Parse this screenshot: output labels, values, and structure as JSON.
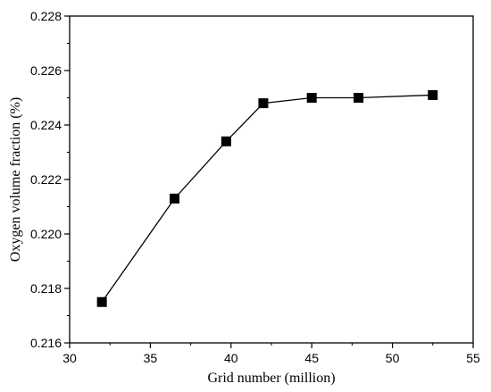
{
  "chart_data": {
    "type": "line",
    "xlabel": "Grid number (million)",
    "ylabel": "Oxygen volume fraction (%)",
    "xlim": [
      30,
      55
    ],
    "ylim": [
      0.216,
      0.228
    ],
    "x_ticks": [
      30,
      35,
      40,
      45,
      50,
      55
    ],
    "y_ticks": [
      0.216,
      0.218,
      0.22,
      0.222,
      0.224,
      0.226,
      0.228
    ],
    "x_tick_labels": [
      "30",
      "35",
      "40",
      "45",
      "50",
      "55"
    ],
    "y_tick_labels": [
      "0.216",
      "0.218",
      "0.220",
      "0.222",
      "0.224",
      "0.226",
      "0.228"
    ],
    "series": [
      {
        "marker": "square",
        "color": "#000000",
        "x": [
          32.0,
          36.5,
          39.7,
          42.0,
          45.0,
          47.9,
          52.5
        ],
        "y": [
          0.2175,
          0.2213,
          0.2234,
          0.2248,
          0.225,
          0.225,
          0.2251
        ]
      }
    ],
    "grid": false,
    "legend": "none"
  }
}
